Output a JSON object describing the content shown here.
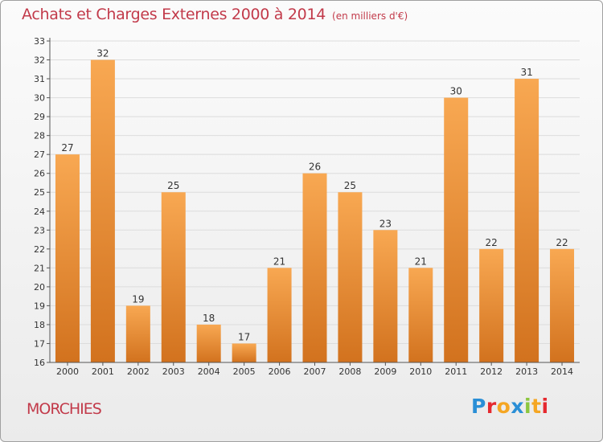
{
  "header": {
    "title": "Achats et Charges Externes 2000 à 2014",
    "unit": "(en milliers d'€)"
  },
  "footer": {
    "commune": "MORCHIES",
    "logo_letters": [
      {
        "char": "P",
        "color": "#2a8fd6"
      },
      {
        "char": "r",
        "color": "#e5292f"
      },
      {
        "char": "o",
        "color": "#f5a623"
      },
      {
        "char": "x",
        "color": "#2a8fd6"
      },
      {
        "char": "i",
        "color": "#8cc63f"
      },
      {
        "char": "t",
        "color": "#f5a623"
      },
      {
        "char": "i",
        "color": "#e5292f"
      }
    ]
  },
  "colors": {
    "bar_light": "#f8a852",
    "bar_dark": "#d2721e",
    "grid": "#dcdcdc",
    "axis": "#555555"
  },
  "chart_data": {
    "type": "bar",
    "categories": [
      "2000",
      "2001",
      "2002",
      "2003",
      "2004",
      "2005",
      "2006",
      "2007",
      "2008",
      "2009",
      "2010",
      "2011",
      "2012",
      "2013",
      "2014"
    ],
    "values": [
      27,
      32,
      19,
      25,
      18,
      17,
      21,
      26,
      25,
      23,
      21,
      30,
      22,
      31,
      22
    ],
    "ylim": [
      16,
      33
    ],
    "yticks": [
      16,
      17,
      18,
      19,
      20,
      21,
      22,
      23,
      24,
      25,
      26,
      27,
      28,
      29,
      30,
      31,
      32,
      33
    ],
    "grid": true,
    "legend": "none"
  }
}
